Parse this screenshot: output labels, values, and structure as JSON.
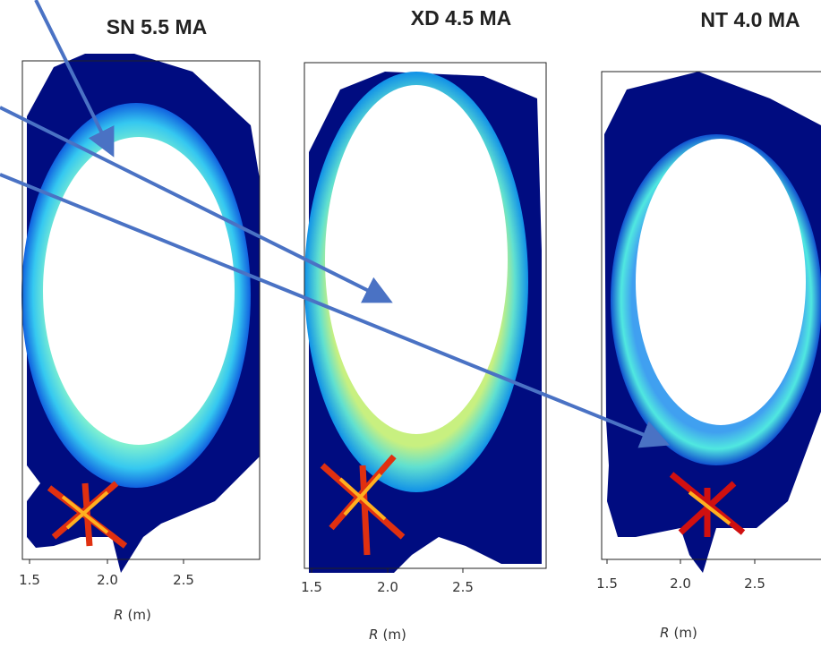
{
  "panels": [
    {
      "title": "SN 5.5 MA",
      "xticks": [
        "1.5",
        "2.0",
        "2.5"
      ],
      "xlabel_var": "R",
      "xlabel_unit": "(m)"
    },
    {
      "title": "XD 4.5 MA",
      "xticks": [
        "1.5",
        "2.0",
        "2.5"
      ],
      "xlabel_var": "R",
      "xlabel_unit": "(m)"
    },
    {
      "title": "NT 4.0 MA",
      "xticks": [
        "1.5",
        "2.0",
        "2.5"
      ],
      "xlabel_var": "R",
      "xlabel_unit": "(m)"
    }
  ]
}
